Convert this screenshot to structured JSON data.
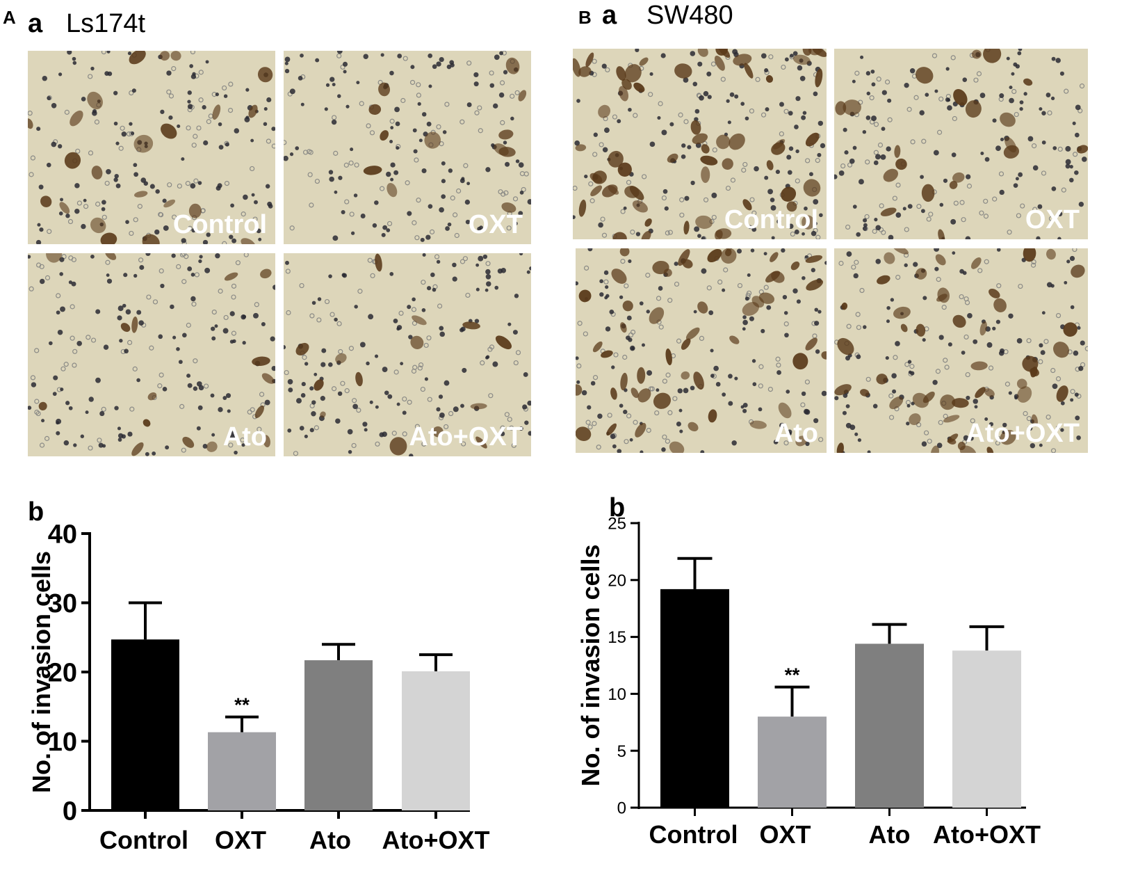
{
  "panel_a": {
    "letter": "A",
    "sub_a": "a",
    "title": "Ls174t",
    "sub_b": "b",
    "images": [
      {
        "label": "Control"
      },
      {
        "label": "OXT"
      },
      {
        "label": "Ato"
      },
      {
        "label": "Ato+OXT"
      }
    ]
  },
  "panel_b": {
    "letter": "B",
    "sub_a": "a",
    "title": "SW480",
    "sub_b": "b",
    "images": [
      {
        "label": "Control"
      },
      {
        "label": "OXT"
      },
      {
        "label": "Ato"
      },
      {
        "label": "Ato+OXT"
      }
    ]
  },
  "colors": {
    "micro_bg": "#ddd6ba",
    "cell_dark": "#5a3a1a",
    "nucleus": "#2a2a33",
    "bars": [
      "#000000",
      "#a2a2a6",
      "#7f7f7f",
      "#d4d4d4"
    ]
  },
  "chart_data": [
    {
      "type": "bar",
      "categories": [
        "Control",
        "OXT",
        "Ato",
        "Ato+OXT"
      ],
      "values": [
        24.7,
        11.3,
        21.7,
        20.1
      ],
      "errors": [
        5.3,
        2.2,
        2.3,
        2.4
      ],
      "significance": [
        "",
        "**",
        "",
        ""
      ],
      "ylabel": "No. of invasion cells",
      "ylim": [
        0,
        40
      ],
      "yticks": [
        0,
        10,
        20,
        30,
        40
      ]
    },
    {
      "type": "bar",
      "categories": [
        "Control",
        "OXT",
        "Ato",
        "Ato+OXT"
      ],
      "values": [
        19.2,
        8.0,
        14.4,
        13.8
      ],
      "errors": [
        2.7,
        2.6,
        1.7,
        2.1
      ],
      "significance": [
        "",
        "**",
        "",
        ""
      ],
      "ylabel": "No. of invasion cells",
      "ylim": [
        0,
        25
      ],
      "yticks": [
        0,
        5,
        10,
        15,
        20,
        25
      ]
    }
  ]
}
